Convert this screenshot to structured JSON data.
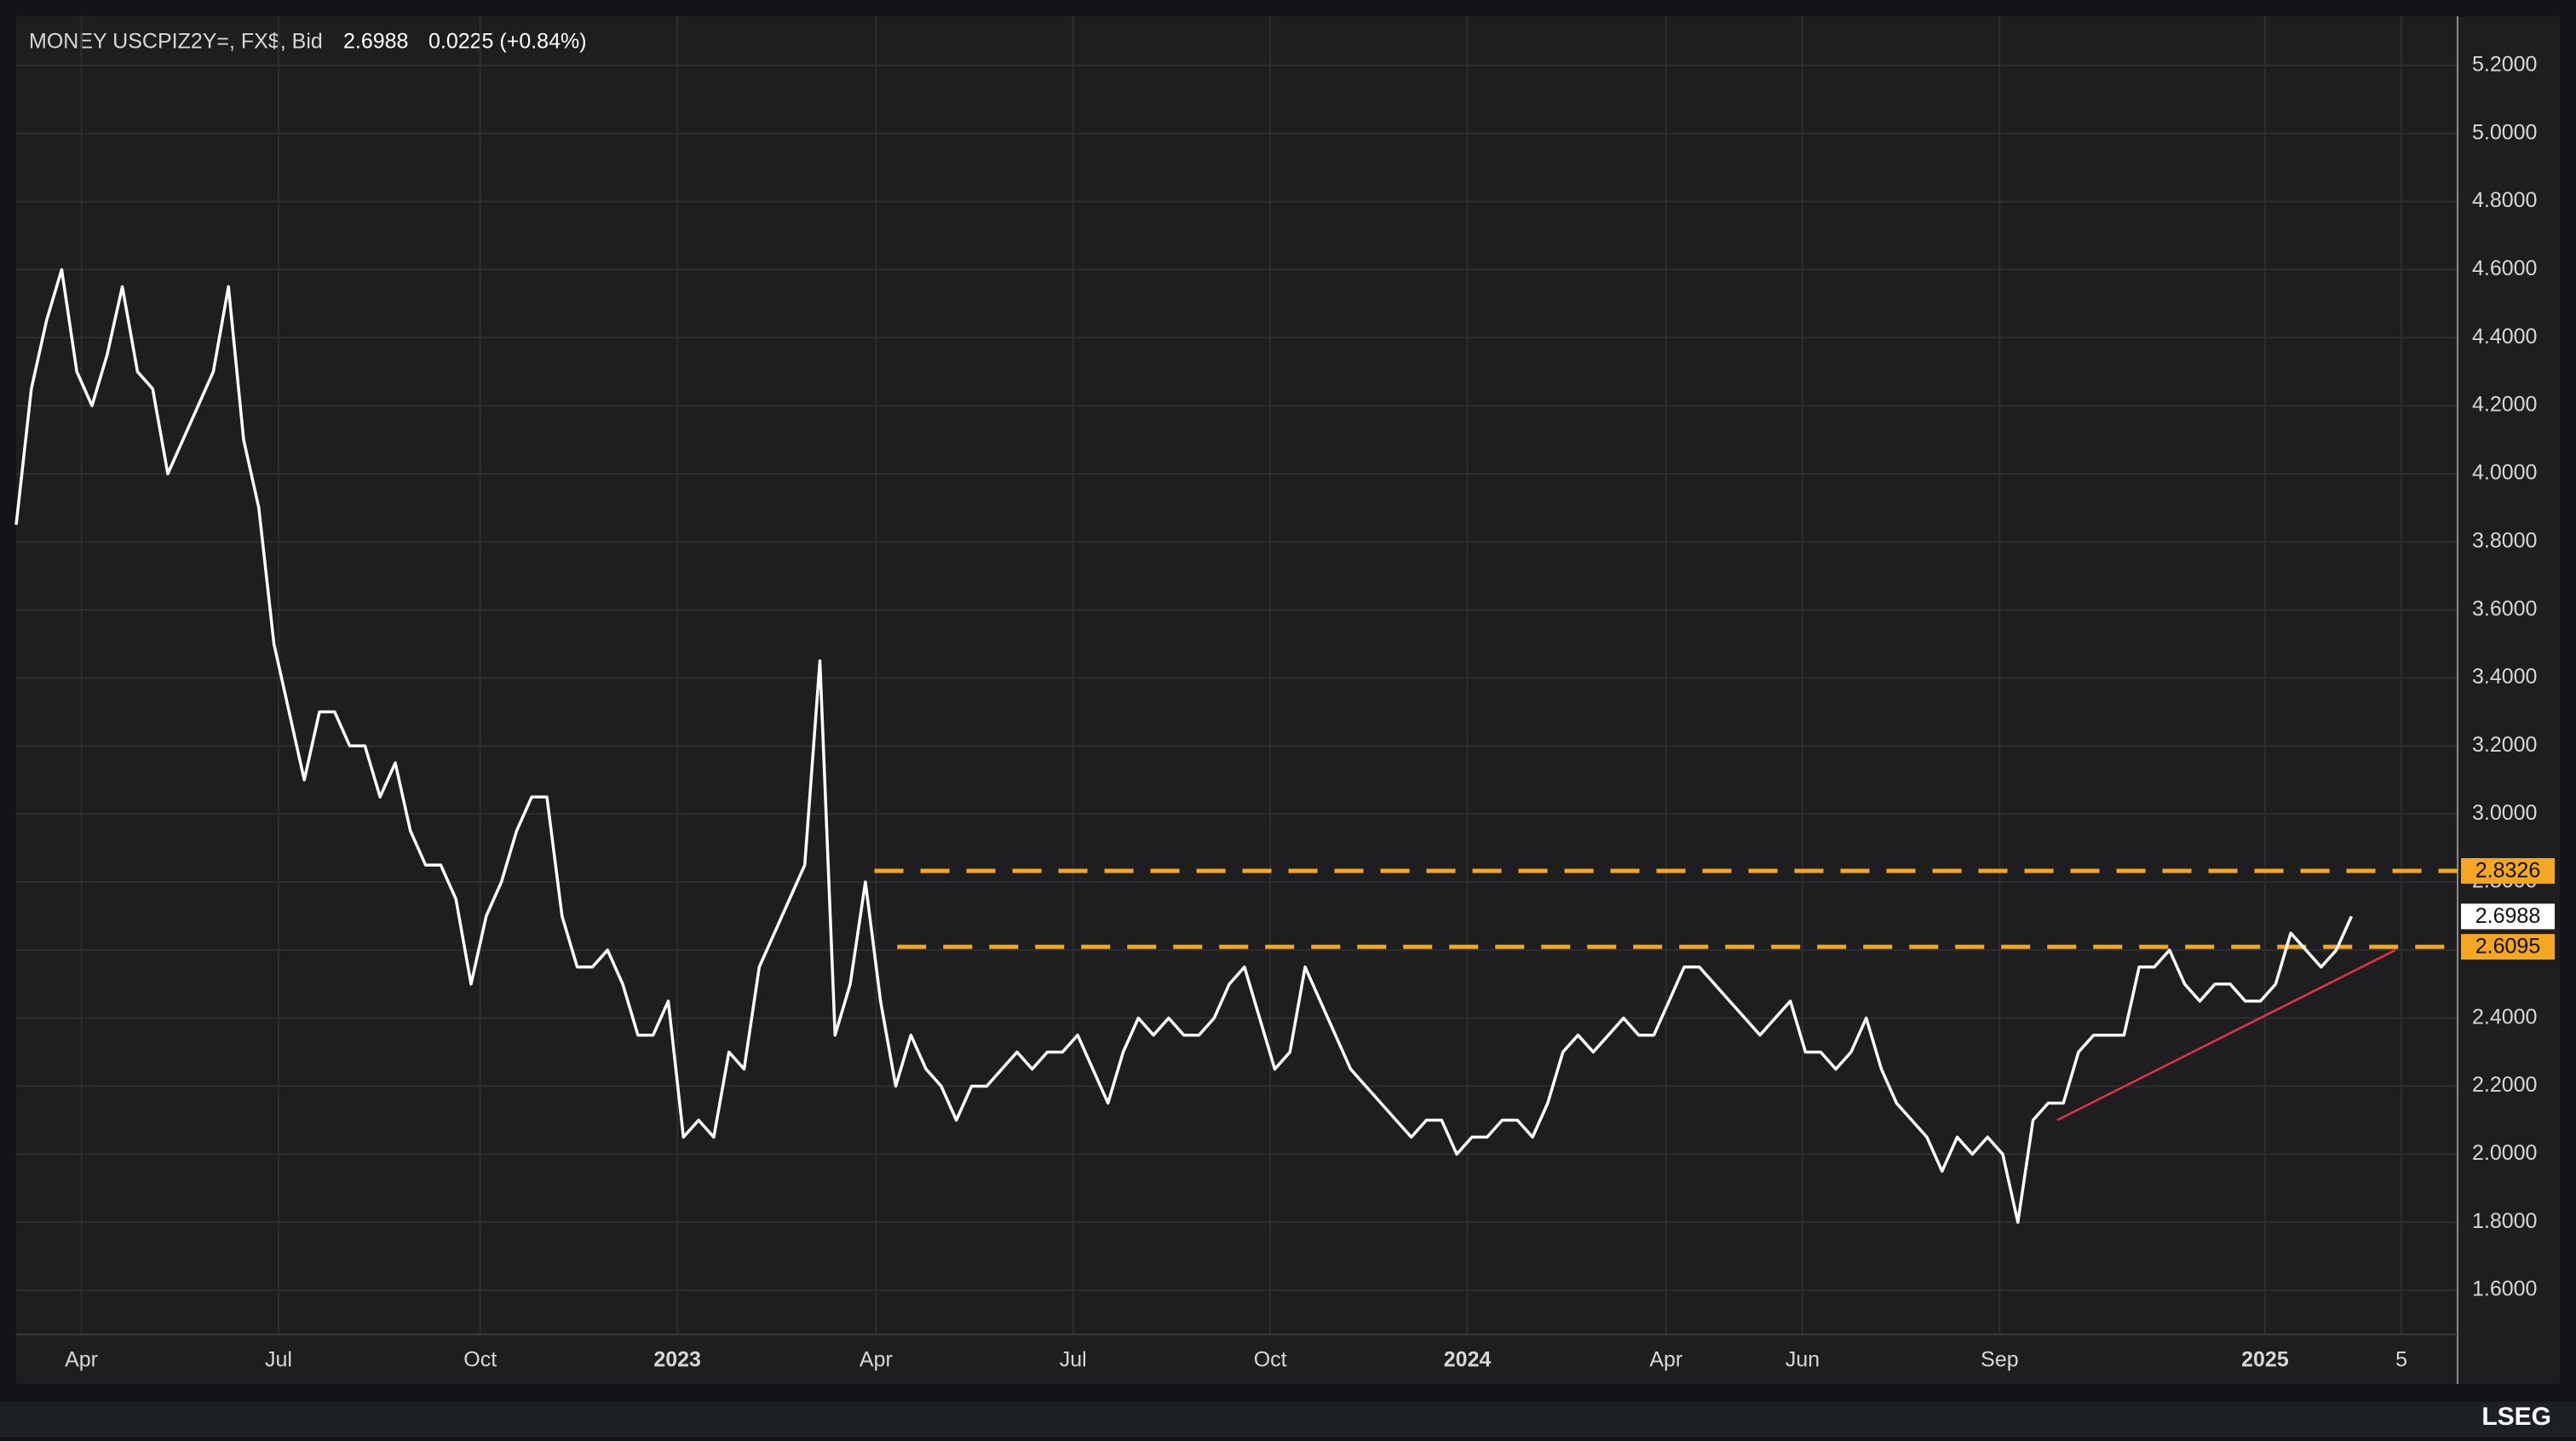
{
  "chart_data": {
    "type": "line",
    "title": "MONEY USCPIZ2Y=, FX$, Bid",
    "last_value": 2.6988,
    "change": "0.0225 (+0.84%)",
    "logo": "LSEG",
    "series": [
      {
        "color": "#ffffff",
        "values": [
          3.85,
          4.25,
          4.45,
          4.6,
          4.3,
          4.2,
          4.35,
          4.55,
          4.3,
          4.25,
          4.0,
          4.1,
          4.2,
          4.3,
          4.55,
          4.1,
          3.9,
          3.5,
          3.3,
          3.1,
          3.3,
          3.3,
          3.2,
          3.2,
          3.05,
          3.15,
          2.95,
          2.85,
          2.85,
          2.75,
          2.5,
          2.7,
          2.8,
          2.95,
          3.05,
          3.05,
          2.7,
          2.55,
          2.55,
          2.6,
          2.5,
          2.35,
          2.35,
          2.45,
          2.05,
          2.1,
          2.05,
          2.3,
          2.25,
          2.55,
          2.65,
          2.75,
          2.85,
          3.45,
          2.35,
          2.5,
          2.8,
          2.45,
          2.2,
          2.35,
          2.25,
          2.2,
          2.1,
          2.2,
          2.2,
          2.25,
          2.3,
          2.25,
          2.3,
          2.3,
          2.35,
          2.25,
          2.15,
          2.3,
          2.4,
          2.35,
          2.4,
          2.35,
          2.35,
          2.4,
          2.5,
          2.55,
          2.4,
          2.25,
          2.3,
          2.55,
          2.45,
          2.35,
          2.25,
          2.2,
          2.15,
          2.1,
          2.05,
          2.1,
          2.1,
          2.0,
          2.05,
          2.05,
          2.1,
          2.1,
          2.05,
          2.15,
          2.3,
          2.35,
          2.3,
          2.35,
          2.4,
          2.35,
          2.35,
          2.45,
          2.55,
          2.55,
          2.5,
          2.45,
          2.4,
          2.35,
          2.4,
          2.45,
          2.3,
          2.3,
          2.25,
          2.3,
          2.4,
          2.25,
          2.15,
          2.1,
          2.05,
          1.95,
          2.05,
          2.0,
          2.05,
          2.0,
          1.8,
          2.1,
          2.15,
          2.15,
          2.3,
          2.35,
          2.35,
          2.35,
          2.55,
          2.55,
          2.6,
          2.5,
          2.45,
          2.5,
          2.5,
          2.45,
          2.45,
          2.5,
          2.65,
          2.6,
          2.55,
          2.6,
          2.6988
        ]
      }
    ],
    "xlim": [
      0,
      161
    ],
    "xticks": [
      {
        "value": 4.3,
        "label": "Apr"
      },
      {
        "value": 17.3,
        "label": "Jul"
      },
      {
        "value": 30.6,
        "label": "Oct"
      },
      {
        "value": 43.6,
        "label": "2023"
      },
      {
        "value": 56.7,
        "label": "Apr"
      },
      {
        "value": 69.7,
        "label": "Jul"
      },
      {
        "value": 82.7,
        "label": "Oct"
      },
      {
        "value": 95.7,
        "label": "2024"
      },
      {
        "value": 108.8,
        "label": "Apr"
      },
      {
        "value": 117.8,
        "label": "Jun"
      },
      {
        "value": 130.8,
        "label": "Sep"
      },
      {
        "value": 148.3,
        "label": "2025"
      },
      {
        "value": 157.3,
        "label": "5"
      }
    ],
    "bold_xticks": [
      "2023",
      "2024",
      "2025"
    ],
    "ylim": [
      1.47,
      5.345
    ],
    "yticks": [
      {
        "value": 1.6,
        "label": "1.6000"
      },
      {
        "value": 1.8,
        "label": "1.8000"
      },
      {
        "value": 2.0,
        "label": "2.0000"
      },
      {
        "value": 2.2,
        "label": "2.2000"
      },
      {
        "value": 2.4,
        "label": "2.4000"
      },
      {
        "value": 2.6,
        "label": "2.6000"
      },
      {
        "value": 2.8,
        "label": "2.8000"
      },
      {
        "value": 3.0,
        "label": "3.0000"
      },
      {
        "value": 3.2,
        "label": "3.2000"
      },
      {
        "value": 3.4,
        "label": "3.4000"
      },
      {
        "value": 3.6,
        "label": "3.6000"
      },
      {
        "value": 3.8,
        "label": "3.8000"
      },
      {
        "value": 4.0,
        "label": "4.0000"
      },
      {
        "value": 4.2,
        "label": "4.2000"
      },
      {
        "value": 4.4,
        "label": "4.4000"
      },
      {
        "value": 4.6,
        "label": "4.6000"
      },
      {
        "value": 4.8,
        "label": "4.8000"
      },
      {
        "value": 5.0,
        "label": "5.0000"
      },
      {
        "value": 5.2,
        "label": "5.2000"
      }
    ],
    "grid": true,
    "levels": [
      {
        "value": 2.8326,
        "x_start": 56.6,
        "color": "#f5a623"
      },
      {
        "value": 2.6095,
        "x_start": 58.1,
        "color": "#f5a623"
      }
    ],
    "trendline": {
      "x": [
        134.6,
        156.9
      ],
      "y": [
        2.1,
        2.6
      ],
      "color": "#e0344a"
    }
  }
}
